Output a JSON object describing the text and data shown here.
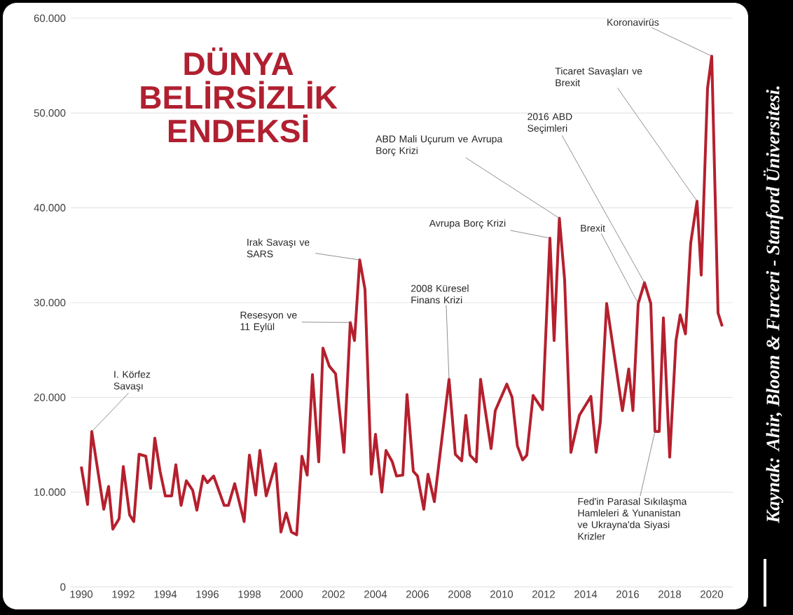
{
  "chart_data": {
    "type": "line",
    "title": "DÜNYA BELİRSİZLİK ENDEKSİ",
    "x": [
      1990.0,
      1990.3,
      1990.5,
      1991.07,
      1991.3,
      1991.5,
      1991.8,
      1992.0,
      1992.3,
      1992.5,
      1992.75,
      1993.07,
      1993.3,
      1993.5,
      1993.75,
      1994.0,
      1994.3,
      1994.5,
      1994.75,
      1995.0,
      1995.3,
      1995.5,
      1995.8,
      1996.0,
      1996.3,
      1996.8,
      1997.0,
      1997.3,
      1997.75,
      1998.0,
      1998.3,
      1998.5,
      1998.8,
      1999.25,
      1999.5,
      1999.75,
      2000.0,
      2000.25,
      2000.5,
      2000.75,
      2001.0,
      2001.3,
      2001.5,
      2001.8,
      2002.1,
      2002.5,
      2002.8,
      2003.0,
      2003.25,
      2003.5,
      2003.8,
      2004.0,
      2004.3,
      2004.5,
      2004.8,
      2005.0,
      2005.3,
      2005.5,
      2005.8,
      2006.0,
      2006.3,
      2006.5,
      2006.8,
      2007.5,
      2007.8,
      2008.1,
      2008.3,
      2008.5,
      2008.8,
      2009.0,
      2009.5,
      2009.7,
      2010.25,
      2010.5,
      2010.75,
      2011.0,
      2011.2,
      2011.5,
      2011.95,
      2012.3,
      2012.5,
      2012.75,
      2013.0,
      2013.3,
      2013.7,
      2014.25,
      2014.5,
      2014.7,
      2015.0,
      2015.75,
      2016.05,
      2016.25,
      2016.5,
      2016.8,
      2017.1,
      2017.3,
      2017.5,
      2017.7,
      2018.0,
      2018.3,
      2018.5,
      2018.75,
      2019.0,
      2019.3,
      2019.5,
      2019.8,
      2020.0,
      2020.3,
      2020.5
    ],
    "values": [
      12700,
      8700,
      16400,
      8200,
      10600,
      6100,
      7200,
      12700,
      7600,
      6900,
      14000,
      13800,
      10400,
      15700,
      12200,
      9600,
      9600,
      12900,
      8600,
      11200,
      10200,
      8100,
      11700,
      11000,
      11700,
      8600,
      8600,
      10900,
      6900,
      13900,
      9700,
      14400,
      9600,
      13000,
      5800,
      7800,
      5800,
      5500,
      13800,
      11800,
      22400,
      13200,
      25200,
      23300,
      22500,
      14200,
      27900,
      26000,
      34500,
      31400,
      11900,
      16100,
      10000,
      14400,
      13200,
      11700,
      11800,
      20300,
      12200,
      11700,
      8200,
      11900,
      9000,
      21900,
      14000,
      13300,
      18100,
      13900,
      13200,
      21900,
      14600,
      18600,
      21400,
      20000,
      14900,
      13400,
      13900,
      20200,
      18700,
      36800,
      26000,
      38900,
      32400,
      14200,
      18100,
      20100,
      14200,
      17400,
      29900,
      18600,
      23000,
      18600,
      29900,
      32100,
      29900,
      16400,
      16400,
      28400,
      13700,
      26000,
      28700,
      26700,
      36300,
      40700,
      32900,
      52600,
      56000,
      28900,
      27500
    ],
    "color": "#b5202e",
    "marker": "none",
    "xlim": [
      1989.5,
      2021
    ],
    "xticks": [
      1990,
      1992,
      1994,
      1996,
      1998,
      2000,
      2002,
      2004,
      2006,
      2008,
      2010,
      2012,
      2014,
      2016,
      2018,
      2020
    ],
    "ylim": [
      0,
      60000
    ],
    "yticks": [
      0,
      {
        "value": 10000,
        "label": "10.000"
      },
      {
        "value": 20000,
        "label": "20.000"
      },
      {
        "value": 30000,
        "label": "30.000"
      },
      {
        "value": 40000,
        "label": "40.000"
      },
      {
        "value": 50000,
        "label": "50.000"
      },
      {
        "value": 60000,
        "label": "60.000"
      }
    ],
    "grid": "y",
    "annotations": [
      {
        "text": "I. Körfez Savaşı",
        "x": 1990.5,
        "y": 16400
      },
      {
        "text": "Resesyon ve 11 Eylül",
        "x": 2002.8,
        "y": 27900
      },
      {
        "text": "Irak Savaşı ve SARS",
        "x": 2003.25,
        "y": 34500
      },
      {
        "text": "2008 Küresel Finans Krizi",
        "x": 2007.5,
        "y": 21900
      },
      {
        "text": "ABD Mali Uçurum ve Avrupa Borç Krizi",
        "x": 2012.75,
        "y": 38900
      },
      {
        "text": "Avrupa Borç Krizi",
        "x": 2012.3,
        "y": 36800
      },
      {
        "text": "2016 ABD Seçimleri",
        "x": 2016.8,
        "y": 32100
      },
      {
        "text": "Brexit",
        "x": 2016.5,
        "y": 29900
      },
      {
        "text": "Ticaret Savaşları ve Brexit",
        "x": 2019.3,
        "y": 40700
      },
      {
        "text": "Koronavirüs",
        "x": 2020.0,
        "y": 56000
      },
      {
        "text": "Fed'in Parasal Sıkılaşma Hamleleri & Yunanistan ve Ukrayna'da Siyasi Krizler",
        "x": 2017.3,
        "y": 16400
      },
      "Kaynak: Ahir, Bloom & Furceri - Stanford Üniversitesi."
    ]
  }
}
